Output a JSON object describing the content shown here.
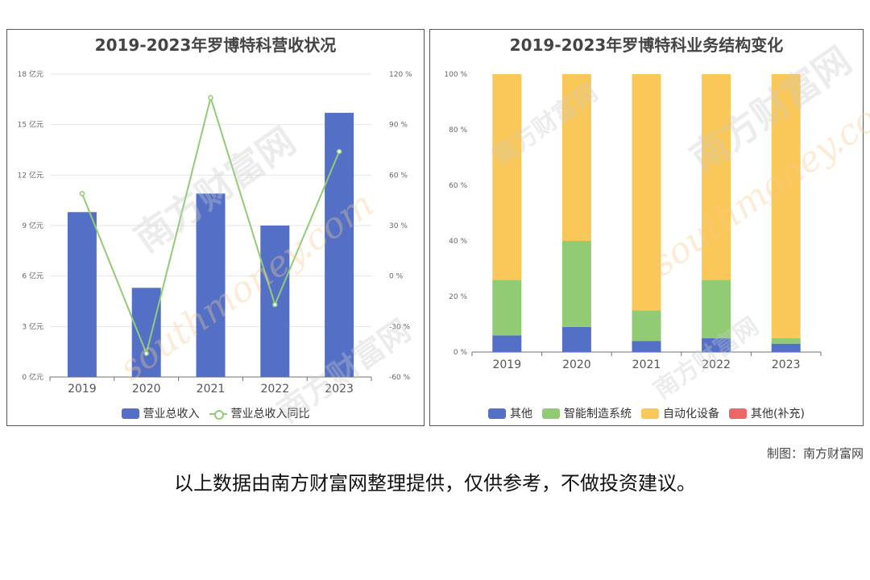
{
  "panels": {
    "left": {
      "title": "2019-2023年罗博特科营收状况",
      "legend": [
        "营业总收入",
        "营业总收入同比"
      ]
    },
    "right": {
      "title": "2019-2023年罗博特科业务结构变化",
      "legend": [
        "其他",
        "智能制造系统",
        "自动化设备",
        "其他(补充)"
      ]
    }
  },
  "colors": {
    "blue": "#5470c6",
    "green": "#91cc75",
    "yellow": "#fac858",
    "red": "#ee6666"
  },
  "watermark": {
    "cn": "南方财富网",
    "en": "southmoney.com"
  },
  "credit": "制图：南方财富网",
  "disclaimer": "以上数据由南方财富网整理提供，仅供参考，不做投资建议。",
  "chart_data": [
    {
      "type": "bar",
      "title": "2019-2023年罗博特科营收状况",
      "categories": [
        "2019",
        "2020",
        "2021",
        "2022",
        "2023"
      ],
      "y_left": {
        "ticks": [
          "0 亿元",
          "3 亿元",
          "6 亿元",
          "9 亿元",
          "12 亿元",
          "15 亿元",
          "18 亿元"
        ],
        "range": [
          0,
          18
        ]
      },
      "y_right": {
        "ticks": [
          "-60 %",
          "-30 %",
          "0 %",
          "30 %",
          "60 %",
          "90 %",
          "120 %"
        ],
        "range": [
          -60,
          120
        ]
      },
      "series": [
        {
          "name": "营业总收入",
          "type": "bar",
          "axis": "left",
          "values": [
            9.8,
            5.3,
            10.9,
            9.0,
            15.7
          ]
        },
        {
          "name": "营业总收入同比",
          "type": "line",
          "axis": "right",
          "values": [
            49,
            -46,
            106,
            -17,
            74
          ]
        }
      ],
      "grid": true,
      "legend": "bottom"
    },
    {
      "type": "bar",
      "stacked": true,
      "title": "2019-2023年罗博特科业务结构变化",
      "categories": [
        "2019",
        "2020",
        "2021",
        "2022",
        "2023"
      ],
      "y": {
        "ticks": [
          "0 %",
          "20 %",
          "40 %",
          "60 %",
          "80 %",
          "100 %"
        ],
        "range": [
          0,
          100
        ]
      },
      "series": [
        {
          "name": "其他",
          "values": [
            6,
            9,
            4,
            5,
            3
          ]
        },
        {
          "name": "智能制造系统",
          "values": [
            20,
            31,
            11,
            21,
            2
          ]
        },
        {
          "name": "自动化设备",
          "values": [
            74,
            60,
            85,
            74,
            95
          ]
        },
        {
          "name": "其他(补充)",
          "values": [
            0,
            0,
            0,
            0,
            0
          ]
        }
      ],
      "grid": false,
      "legend": "bottom"
    }
  ]
}
